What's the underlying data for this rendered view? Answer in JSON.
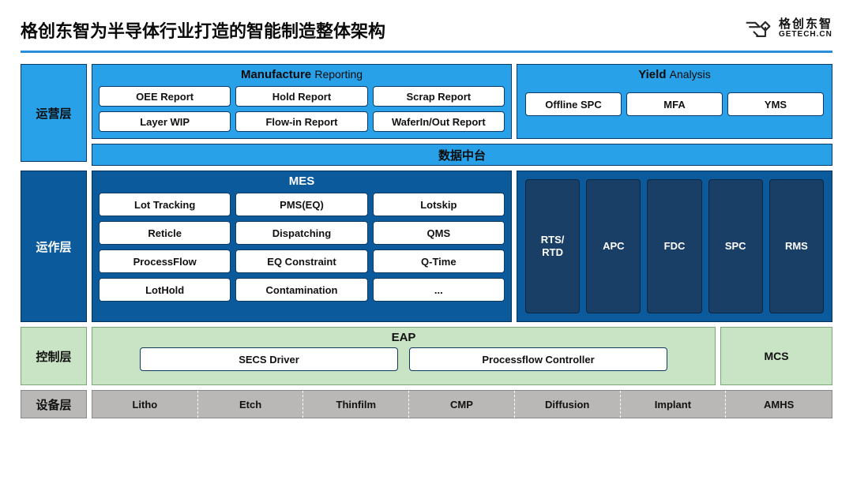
{
  "title": "格创东智为半导体行业打造的智能制造整体架构",
  "logo": {
    "cn": "格创东智",
    "en": "GETECH.CN",
    "stroke": "#2a2a2a"
  },
  "colors": {
    "underline": "#2a8edb",
    "layer1_bg": "#29a1e8",
    "layer1_border": "#0f3a63",
    "layer2_bg": "#0b5a9c",
    "layer2_border": "#063257",
    "layer2_col_bg": "#1a3f66",
    "layer2_col_border": "#0a2540",
    "layer3_bg": "#c9e3c5",
    "layer3_border": "#7ca878",
    "layer4_bg": "#b9b8b6",
    "layer4_border": "#8a8986",
    "pill_bg": "#ffffff",
    "text": "#111111",
    "text_inv": "#ffffff"
  },
  "layers": {
    "ops_mgmt": {
      "label": "运营层",
      "mfg": {
        "title_main": "Manufacture",
        "title_sub": "Reporting",
        "items": [
          "OEE Report",
          "Hold Report",
          "Scrap Report",
          "Layer WIP",
          "Flow-in Report",
          "WaferIn/Out Report"
        ]
      },
      "ya": {
        "title_main": "Yield",
        "title_sub": "Analysis",
        "items": [
          "Offline  SPC",
          "MFA",
          "YMS"
        ]
      },
      "mid_bar": "数据中台"
    },
    "ops_exec": {
      "label": "运作层",
      "mes": {
        "title": "MES",
        "items": [
          "Lot Tracking",
          "PMS(EQ)",
          "Lotskip",
          "Reticle",
          "Dispatching",
          "QMS",
          "ProcessFlow",
          "EQ Constraint",
          "Q-Time",
          "LotHold",
          "Contamination",
          "..."
        ]
      },
      "right_cols": [
        "RTS/\nRTD",
        "APC",
        "FDC",
        "SPC",
        "RMS"
      ]
    },
    "control": {
      "label": "控制层",
      "eap": {
        "title": "EAP",
        "items": [
          "SECS Driver",
          "Processflow Controller"
        ]
      },
      "mcs": "MCS"
    },
    "equip": {
      "label": "设备层",
      "items": [
        "Litho",
        "Etch",
        "Thinfilm",
        "CMP",
        "Diffusion",
        "Implant",
        "AMHS"
      ]
    }
  }
}
